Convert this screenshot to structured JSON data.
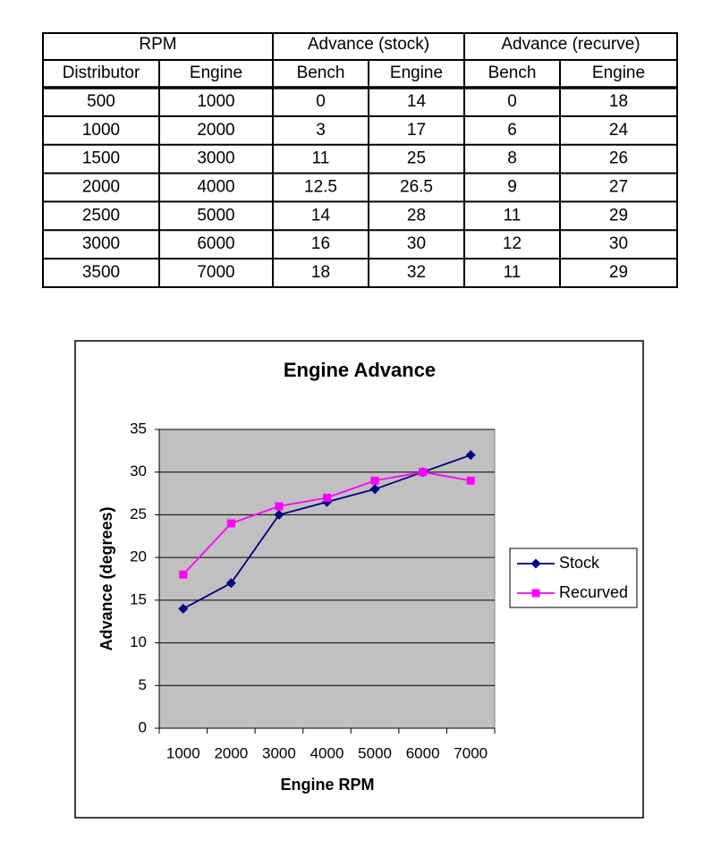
{
  "table": {
    "header_top": [
      "RPM",
      "Advance (stock)",
      "Advance (recurve)"
    ],
    "header_sub": [
      "Distributor",
      "Engine",
      "Bench",
      "Engine",
      "Bench",
      "Engine"
    ],
    "rows": [
      [
        500,
        1000,
        0,
        14,
        0,
        18
      ],
      [
        1000,
        2000,
        3,
        17,
        6,
        24
      ],
      [
        1500,
        3000,
        11,
        25,
        8,
        26
      ],
      [
        2000,
        4000,
        12.5,
        26.5,
        9,
        27
      ],
      [
        2500,
        5000,
        14,
        28,
        11,
        29
      ],
      [
        3000,
        6000,
        16,
        30,
        12,
        30
      ],
      [
        3500,
        7000,
        18,
        32,
        11,
        29
      ]
    ]
  },
  "chart_data": {
    "type": "line",
    "title": "Engine Advance",
    "x_label": "Engine RPM",
    "y_label": "Advance (degrees)",
    "categories": [
      "1000",
      "2000",
      "3000",
      "4000",
      "5000",
      "6000",
      "7000"
    ],
    "series": [
      {
        "name": "Stock",
        "color": "#000080",
        "marker": "diamond",
        "values": [
          14,
          17,
          25,
          26.5,
          28,
          30,
          32
        ]
      },
      {
        "name": "Recurved",
        "color": "#ff00ff",
        "marker": "square",
        "values": [
          18,
          24,
          26,
          27,
          29,
          30,
          29
        ]
      }
    ],
    "ylim": [
      0,
      35
    ],
    "yticks": [
      0,
      5,
      10,
      15,
      20,
      25,
      30,
      35
    ],
    "grid": true,
    "legend": "right"
  }
}
